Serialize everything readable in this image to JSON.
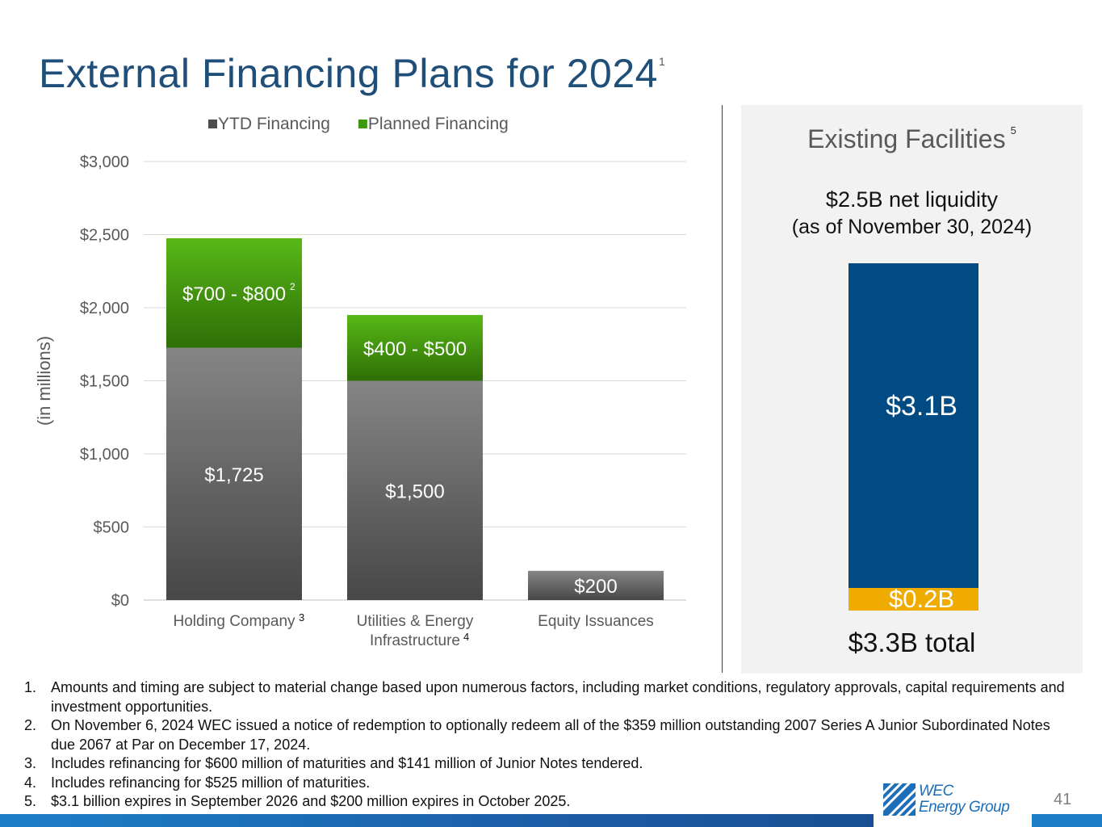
{
  "slide": {
    "title": "External Financing Plans for 2024",
    "title_sup": "1",
    "page_number": "41"
  },
  "chart_data": {
    "type": "bar",
    "stacked": true,
    "ylabel": "(in millions)",
    "ylim": [
      0,
      3000
    ],
    "yticks": [
      0,
      500,
      1000,
      1500,
      2000,
      2500,
      3000
    ],
    "ytick_labels": [
      "$0",
      "$500",
      "$1,000",
      "$1,500",
      "$2,000",
      "$2,500",
      "$3,000"
    ],
    "grid": true,
    "legend_position": "top",
    "categories": [
      {
        "lines": [
          "Holding Company"
        ],
        "sup": "3"
      },
      {
        "lines": [
          "Utilities & Energy",
          "Infrastructure"
        ],
        "sup": "4"
      },
      {
        "lines": [
          "Equity Issuances"
        ],
        "sup": ""
      }
    ],
    "series": [
      {
        "name": "YTD Financing",
        "color": "#6e6e6e",
        "values": [
          1725,
          1500,
          200
        ],
        "labels": [
          "$1,725",
          "$1,500",
          "$200"
        ],
        "label_sups": [
          "",
          "",
          ""
        ]
      },
      {
        "name": "Planned Financing",
        "color": "#47a80d",
        "values": [
          750,
          450,
          0
        ],
        "labels": [
          "$700 - $800",
          "$400 - $500",
          ""
        ],
        "label_sups": [
          "2",
          "",
          ""
        ]
      }
    ]
  },
  "facilities": {
    "title": "Existing Facilities",
    "title_sup": "5",
    "liquidity_line1": "$2.5B net liquidity",
    "liquidity_line2": "(as of November 30, 2024)",
    "bar_top_label": "$3.1B",
    "bar_bottom_label": "$0.2B",
    "total": "$3.3B total",
    "colors": {
      "top": "#004b83",
      "bottom": "#f0ab00"
    }
  },
  "footnotes": [
    {
      "num": "1.",
      "text": "Amounts and timing are subject to material change based upon numerous factors, including market conditions, regulatory approvals, capital requirements and investment opportunities."
    },
    {
      "num": "2.",
      "text": "On November 6, 2024 WEC issued a notice of redemption to optionally redeem all of the $359 million outstanding 2007 Series A Junior Subordinated Notes due 2067 at Par on December 17, 2024."
    },
    {
      "num": "3.",
      "text": "Includes refinancing for $600 million of maturities and $141 million of Junior Notes tendered."
    },
    {
      "num": "4.",
      "text": "Includes refinancing for $525 million of maturities."
    },
    {
      "num": "5.",
      "text": "$3.1 billion expires in September 2026 and $200 million expires in October 2025."
    }
  ],
  "logo": {
    "line1": "WEC",
    "line2": "Energy Group"
  }
}
